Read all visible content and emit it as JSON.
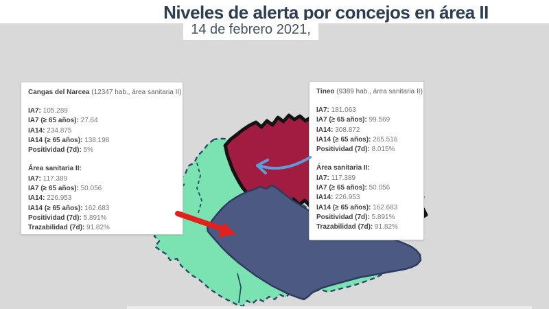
{
  "title": "Niveles de alerta por concejos en área II",
  "subtitle": "14 de febrero 2021,",
  "info_boxes": [
    {
      "header_name": "Cangas del Narcea",
      "header_detail": "(12347 hab., área sanitaria II)",
      "municipality_stats": [
        {
          "label": "IA7",
          "value": "105.289"
        },
        {
          "label": "IA7 (≥ 65 años)",
          "value": "27.64"
        },
        {
          "label": "IA14",
          "value": "234.875"
        },
        {
          "label": "IA14 (≥ 65 años)",
          "value": "138.198"
        },
        {
          "label": "Positividad (7d)",
          "value": "5%"
        }
      ],
      "area_header": "Área sanitaria II:",
      "area_stats": [
        {
          "label": "IA7",
          "value": "117.389"
        },
        {
          "label": "IA7 (≥ 65 años)",
          "value": "50.056"
        },
        {
          "label": "IA14",
          "value": "226.953"
        },
        {
          "label": "IA14 (≥ 65 años)",
          "value": "162.683"
        },
        {
          "label": "Positividad (7d)",
          "value": "5.891%"
        },
        {
          "label": "Trazabilidad (7d)",
          "value": "91.82%"
        }
      ]
    },
    {
      "header_name": "Tineo",
      "header_detail": "(9389 hab., área sanitaria II)",
      "municipality_stats": [
        {
          "label": "IA7",
          "value": "181.063"
        },
        {
          "label": "IA7 (≥ 65 años)",
          "value": "99.569"
        },
        {
          "label": "IA14",
          "value": "308.872"
        },
        {
          "label": "IA14 (≥ 65 años)",
          "value": "265.516"
        },
        {
          "label": "Positividad (7d)",
          "value": "8.015%"
        }
      ],
      "area_header": "Área sanitaria II:",
      "area_stats": [
        {
          "label": "IA7",
          "value": "117.389"
        },
        {
          "label": "IA7 (≥ 65 años)",
          "value": "50.056"
        },
        {
          "label": "IA14",
          "value": "226.953"
        },
        {
          "label": "IA14 (≥ 65 años)",
          "value": "162.683"
        },
        {
          "label": "Positividad (7d)",
          "value": "5.891%"
        },
        {
          "label": "Trazabilidad (7d)",
          "value": "91.82%"
        }
      ]
    }
  ],
  "map": {
    "regions": [
      {
        "name": "Tineo",
        "fill": "#A11C40"
      },
      {
        "name": "Cangas del Narcea",
        "fill": "#4C5983"
      },
      {
        "name": "Resto área sanitaria II",
        "fill": "#7BE3B1"
      }
    ],
    "outline_color": "#2B4A68",
    "tineo_border_color": "#141414",
    "cangas_border_color": "#2F3A5F",
    "arrows": [
      {
        "name": "arrow-to-cangas",
        "color": "#E3201B"
      },
      {
        "name": "arrow-to-tineo",
        "color": "#5E9CD8"
      }
    ]
  },
  "colors": {
    "background": "#D9D9D9",
    "title": "#2C3E50",
    "subtitle": "#44525F"
  }
}
